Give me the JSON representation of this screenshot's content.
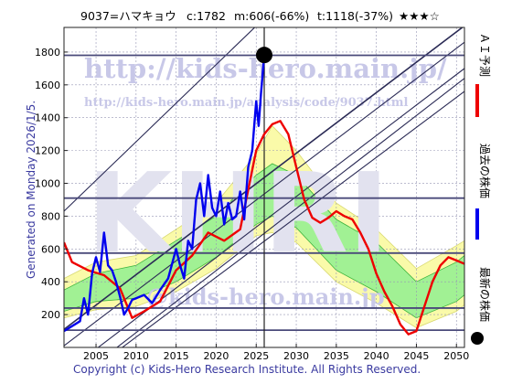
{
  "header": {
    "code_name": "9037=ハマキョウ",
    "current": "c:1782",
    "min": "m:606(-66%)",
    "target": "t:1118(-37%)",
    "rating": "★★★☆"
  },
  "side_note": "Generated on Monday 2026/1/5.",
  "copyright": "Copyright (c) Kids-Hero Research Institute. All Rights Reserved.",
  "watermarks": {
    "url_main": "http://kids-hero.main.jp/",
    "url_sub": "http://kids-hero.main.jp/analysis/code/9037.html",
    "big_text": "KHRI",
    "bottom": "@kids-hero.main.jp"
  },
  "legend": {
    "ai_forecast": "ＡＩ予測",
    "past_price": "過去の株価",
    "latest_price": "最新の株価"
  },
  "colors": {
    "past_price": "#0000ee",
    "ai_forecast": "#ee0000",
    "band_green": "#90ee90",
    "band_yellow": "#fafaa0",
    "grid": "#9696b4",
    "channel": "#2a2a55",
    "latest_marker": "#000000"
  },
  "chart_data": {
    "type": "line",
    "title": "9037=ハマキョウ",
    "xlabel": "",
    "ylabel": "",
    "xlim": [
      2001,
      2051
    ],
    "ylim": [
      0,
      1950
    ],
    "x_ticks": [
      2005,
      2010,
      2015,
      2020,
      2025,
      2030,
      2035,
      2040,
      2045,
      2050
    ],
    "y_ticks": [
      200,
      400,
      600,
      800,
      1000,
      1200,
      1400,
      1600,
      1800
    ],
    "grid": true,
    "horizontal_levels": [
      105,
      240,
      575,
      910,
      1780
    ],
    "latest_point": {
      "x": 2026.0,
      "y": 1782
    },
    "series": [
      {
        "name": "過去の株価",
        "x": [
          2001,
          2002,
          2003,
          2003.5,
          2004,
          2004.5,
          2005,
          2005.5,
          2006,
          2006.5,
          2007,
          2007.5,
          2008,
          2008.5,
          2009,
          2009.5,
          2010,
          2011,
          2012,
          2013,
          2014,
          2015,
          2015.5,
          2016,
          2016.5,
          2017,
          2017.5,
          2018,
          2018.5,
          2019,
          2019.5,
          2020,
          2020.5,
          2021,
          2021.5,
          2022,
          2022.5,
          2023,
          2023.5,
          2024,
          2024.5,
          2025,
          2025.3,
          2025.6,
          2026
        ],
        "values": [
          100,
          130,
          160,
          300,
          200,
          450,
          550,
          460,
          700,
          500,
          470,
          400,
          310,
          200,
          240,
          290,
          300,
          320,
          270,
          350,
          420,
          600,
          500,
          420,
          650,
          600,
          900,
          1000,
          800,
          1050,
          850,
          800,
          950,
          750,
          880,
          780,
          800,
          950,
          780,
          1100,
          1200,
          1500,
          1350,
          1550,
          1782
        ]
      },
      {
        "name": "ＡＩ予測",
        "x": [
          2001,
          2002,
          2004,
          2006,
          2008,
          2009.5,
          2011,
          2013,
          2015,
          2017,
          2019,
          2021,
          2023,
          2025,
          2026,
          2027,
          2028,
          2029,
          2030,
          2031,
          2032,
          2033,
          2034,
          2035,
          2036,
          2037,
          2038,
          2039,
          2040,
          2041,
          2042,
          2043,
          2044,
          2045,
          2046,
          2047,
          2048,
          2049,
          2050,
          2051
        ],
        "values": [
          640,
          520,
          470,
          440,
          360,
          180,
          220,
          280,
          470,
          560,
          700,
          650,
          720,
          1200,
          1300,
          1360,
          1380,
          1300,
          1100,
          900,
          790,
          760,
          790,
          830,
          800,
          780,
          700,
          600,
          450,
          340,
          250,
          140,
          80,
          100,
          250,
          400,
          500,
          550,
          530,
          510
        ]
      }
    ],
    "bands": [
      {
        "name": "green",
        "x": [
          2001,
          2005,
          2010,
          2015,
          2020,
          2025,
          2027,
          2030,
          2035,
          2040,
          2045,
          2050,
          2051
        ],
        "upper": [
          350,
          450,
          500,
          650,
          800,
          1050,
          1120,
          1050,
          780,
          640,
          400,
          520,
          560
        ],
        "lower": [
          220,
          280,
          300,
          400,
          550,
          750,
          800,
          730,
          470,
          340,
          180,
          280,
          320
        ]
      },
      {
        "name": "yellow",
        "x": [
          2001,
          2005,
          2010,
          2015,
          2020,
          2025,
          2027,
          2030,
          2035,
          2040,
          2045,
          2050,
          2051
        ],
        "upper": [
          420,
          520,
          560,
          720,
          880,
          1180,
          1350,
          1200,
          880,
          720,
          480,
          620,
          650
        ],
        "lower": [
          180,
          230,
          250,
          340,
          480,
          680,
          700,
          640,
          400,
          270,
          120,
          220,
          260
        ]
      }
    ]
  }
}
